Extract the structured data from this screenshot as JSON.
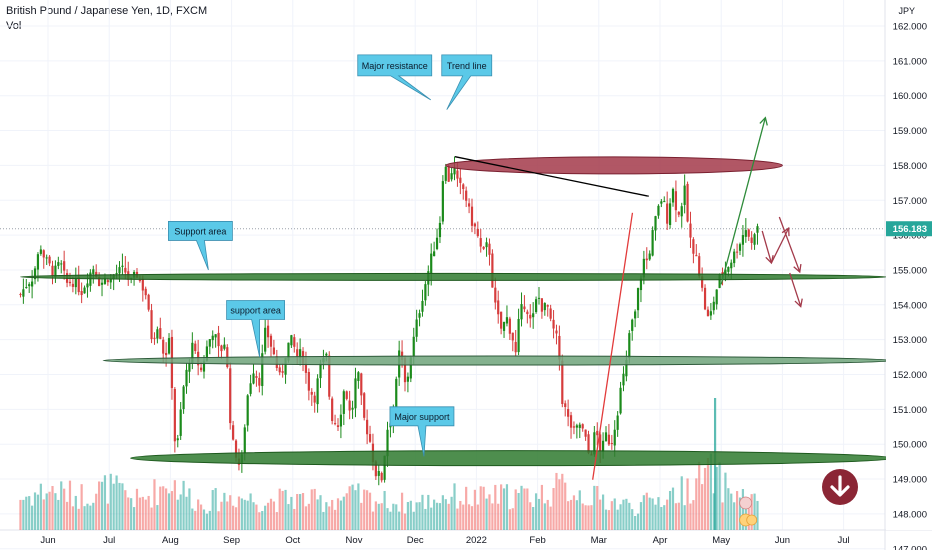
{
  "header": {
    "title": "British Pound / Japanese Yen, 1D, FXCM",
    "volume_label": "Vol"
  },
  "chart_data": {
    "type": "candlestick",
    "price_axis": {
      "unit_label": "JPY",
      "ticks": [
        "162.000",
        "161.000",
        "160.000",
        "159.000",
        "158.000",
        "157.000",
        "156.000",
        "155.000",
        "154.000",
        "153.000",
        "152.000",
        "151.000",
        "150.000",
        "149.000",
        "148.000",
        "147.000"
      ],
      "ylim": [
        146.3,
        162.4
      ]
    },
    "time_axis": {
      "ticks": [
        "Jun",
        "Jul",
        "Aug",
        "Sep",
        "Oct",
        "Nov",
        "Dec",
        "2022",
        "Feb",
        "Mar",
        "Apr",
        "May",
        "Jun",
        "Jul"
      ],
      "tick_months": [
        0,
        1,
        2,
        3,
        4,
        5,
        6,
        7,
        8,
        9,
        10,
        11,
        12,
        13
      ]
    },
    "last_price": "156.183",
    "last_price_value": 156.183,
    "price_path": [
      [
        -0.45,
        154.3
      ],
      [
        -0.35,
        154.6
      ],
      [
        -0.25,
        154.8
      ],
      [
        -0.12,
        155.7
      ],
      [
        -0.05,
        155.3
      ],
      [
        0.1,
        154.9
      ],
      [
        0.2,
        155.2
      ],
      [
        0.3,
        154.6
      ],
      [
        0.4,
        154.7
      ],
      [
        0.55,
        154.4
      ],
      [
        0.65,
        154.8
      ],
      [
        0.75,
        155.1
      ],
      [
        0.85,
        154.6
      ],
      [
        0.98,
        154.8
      ],
      [
        1.02,
        154.7
      ],
      [
        1.1,
        154.9
      ],
      [
        1.25,
        155.0
      ],
      [
        1.35,
        154.6
      ],
      [
        1.45,
        154.9
      ],
      [
        1.6,
        154.3
      ],
      [
        1.7,
        153.0
      ],
      [
        1.8,
        153.5
      ],
      [
        1.9,
        152.5
      ],
      [
        2.0,
        153.0
      ],
      [
        2.05,
        150.5
      ],
      [
        2.1,
        149.7
      ],
      [
        2.2,
        151.5
      ],
      [
        2.35,
        152.8
      ],
      [
        2.5,
        152.1
      ],
      [
        2.6,
        152.8
      ],
      [
        2.7,
        153.3
      ],
      [
        2.8,
        152.6
      ],
      [
        2.9,
        153.0
      ],
      [
        3.0,
        150.1
      ],
      [
        3.1,
        149.6
      ],
      [
        3.15,
        149.2
      ],
      [
        3.25,
        151.3
      ],
      [
        3.35,
        152.2
      ],
      [
        3.45,
        151.8
      ],
      [
        3.5,
        152.5
      ],
      [
        3.55,
        153.2
      ],
      [
        3.6,
        153.1
      ],
      [
        3.7,
        152.5
      ],
      [
        3.8,
        151.8
      ],
      [
        3.9,
        152.8
      ],
      [
        4.0,
        153.0
      ],
      [
        4.05,
        152.5
      ],
      [
        4.15,
        152.6
      ],
      [
        4.25,
        151.7
      ],
      [
        4.35,
        151.3
      ],
      [
        4.45,
        152.2
      ],
      [
        4.55,
        152.5
      ],
      [
        4.6,
        151.3
      ],
      [
        4.65,
        150.7
      ],
      [
        4.75,
        150.6
      ],
      [
        4.85,
        151.7
      ],
      [
        4.95,
        150.7
      ],
      [
        5.05,
        152.2
      ],
      [
        5.15,
        150.8
      ],
      [
        5.25,
        150.2
      ],
      [
        5.35,
        149.2
      ],
      [
        5.45,
        149.0
      ],
      [
        5.55,
        150.5
      ],
      [
        5.65,
        151.0
      ],
      [
        5.75,
        152.8
      ],
      [
        5.85,
        151.5
      ],
      [
        5.9,
        152.3
      ],
      [
        6.05,
        153.7
      ],
      [
        6.15,
        154.5
      ],
      [
        6.3,
        155.6
      ],
      [
        6.4,
        156.3
      ],
      [
        6.45,
        157.7
      ],
      [
        6.5,
        157.9
      ],
      [
        6.55,
        157.6
      ],
      [
        6.62,
        158.0
      ],
      [
        6.7,
        157.4
      ],
      [
        6.8,
        157.3
      ],
      [
        6.9,
        156.5
      ],
      [
        7.0,
        156.1
      ],
      [
        7.1,
        155.4
      ],
      [
        7.2,
        155.8
      ],
      [
        7.25,
        154.8
      ],
      [
        7.3,
        154.0
      ],
      [
        7.4,
        153.3
      ],
      [
        7.5,
        153.6
      ],
      [
        7.6,
        153.0
      ],
      [
        7.65,
        152.5
      ],
      [
        7.7,
        153.7
      ],
      [
        7.8,
        154.1
      ],
      [
        7.9,
        153.4
      ],
      [
        8.0,
        154.3
      ],
      [
        8.1,
        153.8
      ],
      [
        8.15,
        154.1
      ],
      [
        8.2,
        153.5
      ],
      [
        8.3,
        153.1
      ],
      [
        8.35,
        152.6
      ],
      [
        8.4,
        151.3
      ],
      [
        8.5,
        150.7
      ],
      [
        8.6,
        150.3
      ],
      [
        8.7,
        150.6
      ],
      [
        8.8,
        150.0
      ],
      [
        8.85,
        149.6
      ],
      [
        8.95,
        150.4
      ],
      [
        9.05,
        149.7
      ],
      [
        9.1,
        150.3
      ],
      [
        9.2,
        150.0
      ],
      [
        9.3,
        150.9
      ],
      [
        9.35,
        151.5
      ],
      [
        9.45,
        152.3
      ],
      [
        9.5,
        153.2
      ],
      [
        9.6,
        153.8
      ],
      [
        9.65,
        154.5
      ],
      [
        9.75,
        155.4
      ],
      [
        9.8,
        155.2
      ],
      [
        9.85,
        155.8
      ],
      [
        9.95,
        156.6
      ],
      [
        10.05,
        157.2
      ],
      [
        10.1,
        156.3
      ],
      [
        10.2,
        157.4
      ],
      [
        10.3,
        156.5
      ],
      [
        10.4,
        157.3
      ],
      [
        10.45,
        156.4
      ],
      [
        10.55,
        155.3
      ],
      [
        10.6,
        155.6
      ],
      [
        10.65,
        154.8
      ],
      [
        10.75,
        153.8
      ],
      [
        10.8,
        153.5
      ],
      [
        10.9,
        154.3
      ],
      [
        11.0,
        154.9
      ],
      [
        11.1,
        155.1
      ],
      [
        11.2,
        155.4
      ],
      [
        11.3,
        155.8
      ],
      [
        11.4,
        156.2
      ],
      [
        11.45,
        156.0
      ],
      [
        11.5,
        155.7
      ],
      [
        11.55,
        156.2
      ],
      [
        11.6,
        156.183
      ]
    ],
    "volume_profile": [
      [
        -0.45,
        0.55
      ],
      [
        0.0,
        0.7
      ],
      [
        0.5,
        0.6
      ],
      [
        1.0,
        0.75
      ],
      [
        1.5,
        0.5
      ],
      [
        2.0,
        0.85
      ],
      [
        2.5,
        0.45
      ],
      [
        3.0,
        0.6
      ],
      [
        3.5,
        0.5
      ],
      [
        4.0,
        0.55
      ],
      [
        4.5,
        0.5
      ],
      [
        5.0,
        0.6
      ],
      [
        5.5,
        0.5
      ],
      [
        6.0,
        0.45
      ],
      [
        6.5,
        0.6
      ],
      [
        7.0,
        0.55
      ],
      [
        7.5,
        0.6
      ],
      [
        8.0,
        0.6
      ],
      [
        8.4,
        0.75
      ],
      [
        8.8,
        0.6
      ],
      [
        9.2,
        0.5
      ],
      [
        9.6,
        0.4
      ],
      [
        10.0,
        0.55
      ],
      [
        10.4,
        0.7
      ],
      [
        10.8,
        1.0
      ],
      [
        11.2,
        0.65
      ],
      [
        11.6,
        0.45
      ]
    ],
    "annotations": [
      {
        "text": "Major resistance"
      },
      {
        "text": "Trend line"
      },
      {
        "text": "Support area"
      },
      {
        "text": "support area"
      },
      {
        "text": "Major support"
      }
    ],
    "colors": {
      "up": "#26a69a",
      "down": "#ef5350",
      "body_up": "#1b8a1b",
      "body_down": "#d63c3c",
      "callout_fill": "#5bc9e8",
      "support_zone": "#2f7a2f",
      "mid_support_zone": "#6fa37a",
      "resistance_zone": "#a33a4a",
      "trend_line": "#000000",
      "rising_trend": "#e23b3b",
      "price_label": "#26a69a",
      "action_button": "#8b2635"
    }
  },
  "controls": {
    "sell_button_icon": "arrow-down-icon"
  }
}
